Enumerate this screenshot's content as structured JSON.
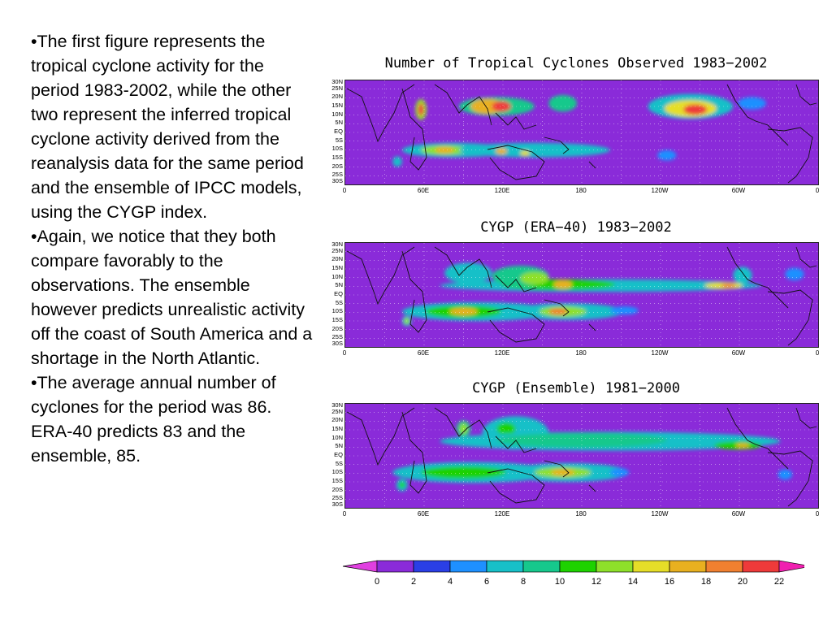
{
  "bullets": [
    "•The first figure represents the tropical cyclone activity for the period 1983-2002, while the other two represent the inferred tropical cyclone activity derived from the reanalysis data for the same period and the ensemble of IPCC models, using the CYGP index.",
    "•Again, we notice that they both compare favorably to the observations.  The ensemble however predicts unrealistic activity off the coast of South America and a shortage in the North Atlantic.",
    "•The average annual number of cyclones for the period was 86.  ERA-40 predicts 83 and the ensemble, 85."
  ],
  "panels": [
    {
      "title": "Number of Tropical Cyclones Observed 1983−2002"
    },
    {
      "title": "CYGP (ERA−40) 1983−2002"
    },
    {
      "title": "CYGP (Ensemble) 1981−2000"
    }
  ],
  "lat_labels": [
    "30N",
    "25N",
    "20N",
    "15N",
    "10N",
    "5N",
    "EQ",
    "5S",
    "10S",
    "15S",
    "20S",
    "25S",
    "30S"
  ],
  "lon_labels": [
    "0",
    "60E",
    "120E",
    "180",
    "120W",
    "60W",
    "0"
  ],
  "colorbar": {
    "labels": [
      "0",
      "2",
      "4",
      "6",
      "8",
      "10",
      "12",
      "14",
      "16",
      "18",
      "20",
      "22"
    ],
    "colors": [
      "#8a2bd9",
      "#2a3fe6",
      "#1e90ff",
      "#17c0c8",
      "#16c88c",
      "#1ed200",
      "#8ee02a",
      "#e6de28",
      "#e8b020",
      "#f08030",
      "#ee3a3a"
    ],
    "end_low": "#e040e0",
    "end_high": "#f020b0"
  }
}
